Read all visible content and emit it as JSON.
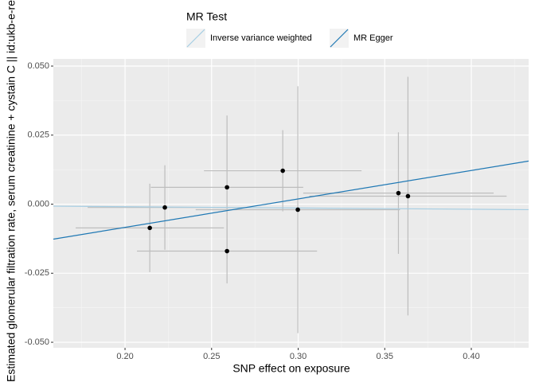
{
  "chart_data": {
    "type": "scatter",
    "xlabel": "SNP effect on exposure",
    "ylabel": "Estimated glomerular filtration rate, serum creatinine + cystain C || id:ukb-e-re",
    "legend_title": "MR Test",
    "xlim": [
      0.1586,
      0.4331
    ],
    "ylim": [
      -0.052,
      0.0526
    ],
    "xticks": [
      {
        "value": 0.2,
        "label": "0.20"
      },
      {
        "value": 0.25,
        "label": "0.25"
      },
      {
        "value": 0.3,
        "label": "0.30"
      },
      {
        "value": 0.35,
        "label": "0.35"
      },
      {
        "value": 0.4,
        "label": "0.40"
      }
    ],
    "yticks": [
      {
        "value": -0.05,
        "label": "-0.050"
      },
      {
        "value": -0.025,
        "label": "-0.025"
      },
      {
        "value": 0,
        "label": "0.000"
      },
      {
        "value": 0.025,
        "label": "0.025"
      },
      {
        "value": 0.05,
        "label": "0.050"
      }
    ],
    "grid": true,
    "point_color": "#000000",
    "errorbar_color": "#bdbdbd",
    "x": [
      0.2143,
      0.223,
      0.2589,
      0.2589,
      0.2911,
      0.2998,
      0.3579,
      0.3634
    ],
    "values": [
      -0.0086,
      -0.0012,
      0.0061,
      -0.017,
      0.0121,
      -0.002,
      0.004,
      0.0029
    ],
    "x_err": [
      0.0428,
      0.0446,
      0.044,
      0.052,
      0.0455,
      0.059,
      0.055,
      0.057
    ],
    "y_err": [
      0.016,
      0.0153,
      0.026,
      0.0117,
      0.0147,
      0.0447,
      0.022,
      0.0432
    ],
    "lines": [
      {
        "name": "Inverse variance weighted",
        "color": "#a6cee3",
        "slope": -0.0046,
        "intercept": 0
      },
      {
        "name": "MR Egger",
        "color": "#1f78b4",
        "slope": 0.103,
        "intercept": -0.029
      }
    ]
  }
}
